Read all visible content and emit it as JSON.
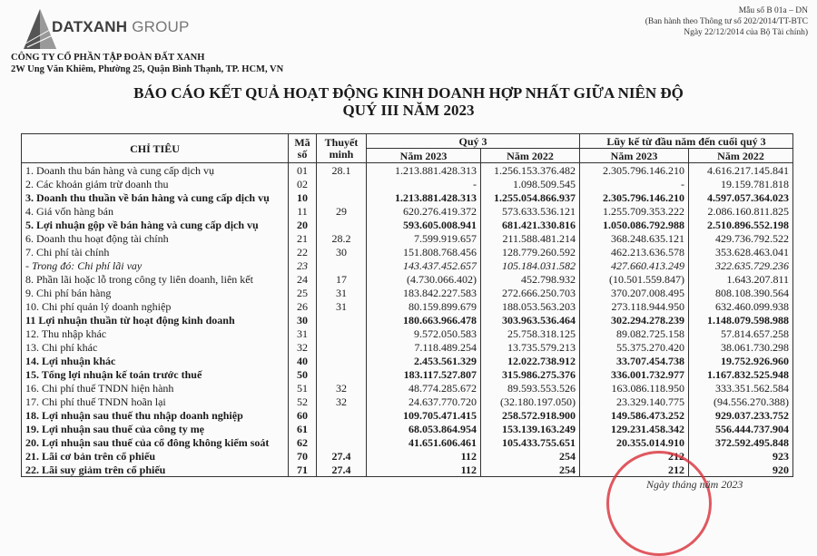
{
  "header": {
    "logo_text": "DATXANH GROUP",
    "company_name": "CÔNG TY CỔ PHẦN TẬP ĐOÀN ĐẤT XANH",
    "address": "2W Ung Văn Khiêm, Phường 25, Quận Bình Thạnh, TP. HCM, VN",
    "form_no": "Mẫu số B 01a – DN",
    "form_note1": "(Ban hành theo Thông tư số 202/2014/TT-BTC",
    "form_note2": "Ngày 22/12/2014 của Bộ Tài chính)"
  },
  "title": "BÁO CÁO KẾT QUẢ HOẠT ĐỘNG KINH DOANH HỢP NHẤT GIỮA NIÊN ĐỘ",
  "subtitle": "QUÝ III NĂM 2023",
  "table": {
    "headers": {
      "item": "CHỈ TIÊU",
      "code": "Mã số",
      "note": "Thuyết minh",
      "q3": "Quý 3",
      "ytd": "Lũy kế từ đầu năm đến cuối quý 3",
      "y2023": "Năm 2023",
      "y2022": "Năm 2022"
    },
    "rows": [
      {
        "item": "1. Doanh thu bán hàng và cung cấp dịch vụ",
        "code": "01",
        "note": "28.1",
        "q23": "1.213.881.428.313",
        "q22": "1.256.153.376.482",
        "y23": "2.305.796.146.210",
        "y22": "4.616.217.145.841",
        "style": ""
      },
      {
        "item": "2. Các khoản giảm trừ doanh thu",
        "code": "02",
        "note": "",
        "q23": "-",
        "q22": "1.098.509.545",
        "y23": "-",
        "y22": "19.159.781.818",
        "style": ""
      },
      {
        "item": "3. Doanh thu thuần về bán hàng và cung cấp dịch vụ",
        "code": "10",
        "note": "",
        "q23": "1.213.881.428.313",
        "q22": "1.255.054.866.937",
        "y23": "2.305.796.146.210",
        "y22": "4.597.057.364.023",
        "style": "b"
      },
      {
        "item": "4. Giá vốn hàng bán",
        "code": "11",
        "note": "29",
        "q23": "620.276.419.372",
        "q22": "573.633.536.121",
        "y23": "1.255.709.353.222",
        "y22": "2.086.160.811.825",
        "style": ""
      },
      {
        "item": "5. Lợi nhuận gộp về bán hàng và cung cấp dịch vụ",
        "code": "20",
        "note": "",
        "q23": "593.605.008.941",
        "q22": "681.421.330.816",
        "y23": "1.050.086.792.988",
        "y22": "2.510.896.552.198",
        "style": "b"
      },
      {
        "item": "6. Doanh thu hoạt động tài chính",
        "code": "21",
        "note": "28.2",
        "q23": "7.599.919.657",
        "q22": "211.588.481.214",
        "y23": "368.248.635.121",
        "y22": "429.736.792.522",
        "style": ""
      },
      {
        "item": "7. Chi phí tài chính",
        "code": "22",
        "note": "30",
        "q23": "151.808.768.456",
        "q22": "128.779.260.592",
        "y23": "462.213.636.578",
        "y22": "353.628.463.041",
        "style": ""
      },
      {
        "item": " - Trong đó: Chi phí lãi vay",
        "code": "23",
        "note": "",
        "q23": "143.437.452.657",
        "q22": "105.184.031.582",
        "y23": "427.660.413.249",
        "y22": "322.635.729.236",
        "style": "i"
      },
      {
        "item": "8. Phần lãi hoặc lỗ trong công ty liên doanh, liên kết",
        "code": "24",
        "note": "17",
        "q23": "(4.730.066.402)",
        "q22": "452.798.932",
        "y23": "(10.501.559.847)",
        "y22": "1.643.207.811",
        "style": ""
      },
      {
        "item": "9. Chi phí bán hàng",
        "code": "25",
        "note": "31",
        "q23": "183.842.227.583",
        "q22": "272.666.250.703",
        "y23": "370.207.008.495",
        "y22": "808.108.390.564",
        "style": ""
      },
      {
        "item": "10. Chi phí quản lý doanh nghiệp",
        "code": "26",
        "note": "31",
        "q23": "80.159.899.679",
        "q22": "188.053.563.203",
        "y23": "273.118.944.950",
        "y22": "632.460.099.938",
        "style": ""
      },
      {
        "item": "11 Lợi nhuận thuần từ hoạt động kinh doanh",
        "code": "30",
        "note": "",
        "q23": "180.663.966.478",
        "q22": "303.963.536.464",
        "y23": "302.294.278.239",
        "y22": "1.148.079.598.988",
        "style": "b"
      },
      {
        "item": "12. Thu nhập khác",
        "code": "31",
        "note": "",
        "q23": "9.572.050.583",
        "q22": "25.758.318.125",
        "y23": "89.082.725.158",
        "y22": "57.814.657.258",
        "style": ""
      },
      {
        "item": "13. Chi phí khác",
        "code": "32",
        "note": "",
        "q23": "7.118.489.254",
        "q22": "13.735.579.213",
        "y23": "55.375.270.420",
        "y22": "38.061.730.298",
        "style": ""
      },
      {
        "item": "14. Lợi nhuận khác",
        "code": "40",
        "note": "",
        "q23": "2.453.561.329",
        "q22": "12.022.738.912",
        "y23": "33.707.454.738",
        "y22": "19.752.926.960",
        "style": "b"
      },
      {
        "item": "15. Tổng lợi nhuận kế toán trước thuế",
        "code": "50",
        "note": "",
        "q23": "183.117.527.807",
        "q22": "315.986.275.376",
        "y23": "336.001.732.977",
        "y22": "1.167.832.525.948",
        "style": "b"
      },
      {
        "item": "16. Chi phí thuế TNDN hiện hành",
        "code": "51",
        "note": "32",
        "q23": "48.774.285.672",
        "q22": "89.593.553.526",
        "y23": "163.086.118.950",
        "y22": "333.351.562.584",
        "style": ""
      },
      {
        "item": "17. Chi phí thuế TNDN hoãn lại",
        "code": "52",
        "note": "32",
        "q23": "24.637.770.720",
        "q22": "(32.180.197.050)",
        "y23": "23.329.140.775",
        "y22": "(94.556.270.388)",
        "style": ""
      },
      {
        "item": "18. Lợi nhuận sau thuế thu nhập doanh nghiệp",
        "code": "60",
        "note": "",
        "q23": "109.705.471.415",
        "q22": "258.572.918.900",
        "y23": "149.586.473.252",
        "y22": "929.037.233.752",
        "style": "b"
      },
      {
        "item": "19. Lợi nhuận sau thuế của công ty mẹ",
        "code": "61",
        "note": "",
        "q23": "68.053.864.954",
        "q22": "153.139.163.249",
        "y23": "129.231.458.342",
        "y22": "556.444.737.904",
        "style": "b"
      },
      {
        "item": "20. Lợi nhuận sau thuế của cổ đông không kiểm soát",
        "code": "62",
        "note": "",
        "q23": "41.651.606.461",
        "q22": "105.433.755.651",
        "y23": "20.355.014.910",
        "y22": "372.592.495.848",
        "style": "b"
      },
      {
        "item": "21. Lãi cơ bản trên cổ phiếu",
        "code": "70",
        "note": "27.4",
        "q23": "112",
        "q22": "254",
        "y23": "212",
        "y22": "923",
        "style": "b"
      },
      {
        "item": "22. Lãi suy giảm trên cổ phiếu",
        "code": "71",
        "note": "27.4",
        "q23": "112",
        "q22": "254",
        "y23": "212",
        "y22": "920",
        "style": "b"
      }
    ]
  },
  "footer": {
    "date_line": "Ngày   tháng   năm 2023"
  },
  "colors": {
    "stamp": "#d9303a",
    "text": "#1a1a1a"
  }
}
